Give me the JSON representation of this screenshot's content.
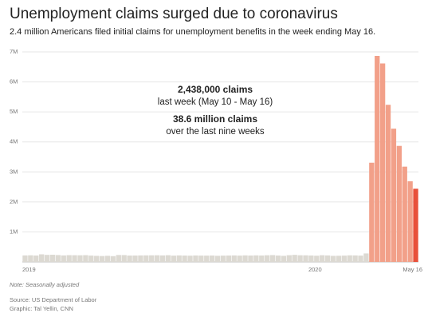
{
  "chart_data": {
    "type": "bar",
    "title": "Unemployment claims surged due to coronavirus",
    "subtitle": "2.4 million Americans filed initial claims for unemployment benefits in the week ending May 16.",
    "annotations": [
      "2,438,000 claims",
      "last week (May 10 - May 16)",
      "38.6 million claims",
      "over the last nine weeks"
    ],
    "note": "Note: Seasonally adjusted",
    "source": "Source: US Department of Labor",
    "credit": "Graphic: Tal Yellin, CNN",
    "categories": [
      "2019",
      null,
      null,
      null,
      null,
      null,
      null,
      null,
      null,
      null,
      null,
      null,
      null,
      null,
      null,
      null,
      null,
      null,
      null,
      null,
      null,
      null,
      null,
      null,
      null,
      null,
      null,
      null,
      null,
      null,
      null,
      null,
      null,
      null,
      null,
      null,
      null,
      null,
      null,
      null,
      null,
      null,
      null,
      null,
      null,
      null,
      null,
      null,
      null,
      null,
      null,
      null,
      "2020",
      null,
      null,
      null,
      null,
      null,
      null,
      null,
      null,
      null,
      null,
      null,
      null,
      null,
      null,
      null,
      null,
      null,
      null,
      "May 16"
    ],
    "values": [
      216000,
      221000,
      213000,
      253000,
      234000,
      239000,
      229000,
      216000,
      225000,
      223000,
      221000,
      225000,
      211000,
      202000,
      196000,
      204000,
      193000,
      230000,
      228000,
      212000,
      213000,
      216000,
      218000,
      220000,
      222000,
      216000,
      224000,
      209000,
      217000,
      212000,
      208000,
      215000,
      211000,
      210000,
      213000,
      204000,
      209000,
      213000,
      216000,
      211000,
      218000,
      213000,
      218000,
      214000,
      222000,
      227000,
      213000,
      203000,
      224000,
      235000,
      222000,
      220000,
      214000,
      207000,
      223000,
      216000,
      202000,
      205000,
      210000,
      219000,
      217000,
      211000,
      282000,
      3307000,
      6867000,
      6615000,
      5237000,
      4442000,
      3867000,
      3176000,
      2687000,
      2438000
    ],
    "colors": [
      "#dcd9d2",
      "#dcd9d2",
      "#dcd9d2",
      "#dcd9d2",
      "#dcd9d2",
      "#dcd9d2",
      "#dcd9d2",
      "#dcd9d2",
      "#dcd9d2",
      "#dcd9d2",
      "#dcd9d2",
      "#dcd9d2",
      "#dcd9d2",
      "#dcd9d2",
      "#dcd9d2",
      "#dcd9d2",
      "#dcd9d2",
      "#dcd9d2",
      "#dcd9d2",
      "#dcd9d2",
      "#dcd9d2",
      "#dcd9d2",
      "#dcd9d2",
      "#dcd9d2",
      "#dcd9d2",
      "#dcd9d2",
      "#dcd9d2",
      "#dcd9d2",
      "#dcd9d2",
      "#dcd9d2",
      "#dcd9d2",
      "#dcd9d2",
      "#dcd9d2",
      "#dcd9d2",
      "#dcd9d2",
      "#dcd9d2",
      "#dcd9d2",
      "#dcd9d2",
      "#dcd9d2",
      "#dcd9d2",
      "#dcd9d2",
      "#dcd9d2",
      "#dcd9d2",
      "#dcd9d2",
      "#dcd9d2",
      "#dcd9d2",
      "#dcd9d2",
      "#dcd9d2",
      "#dcd9d2",
      "#dcd9d2",
      "#dcd9d2",
      "#dcd9d2",
      "#dcd9d2",
      "#dcd9d2",
      "#dcd9d2",
      "#dcd9d2",
      "#dcd9d2",
      "#dcd9d2",
      "#dcd9d2",
      "#dcd9d2",
      "#dcd9d2",
      "#dcd9d2",
      "#dcd9d2",
      "#f2a089",
      "#f2a089",
      "#f2a089",
      "#f2a089",
      "#f2a089",
      "#f2a089",
      "#f2a089",
      "#f2a089",
      "#e8503a"
    ],
    "ylim": [
      0,
      7000000
    ],
    "yticks": [
      {
        "value": 1000000,
        "label": "1M"
      },
      {
        "value": 2000000,
        "label": "2M"
      },
      {
        "value": 3000000,
        "label": "3M"
      },
      {
        "value": 4000000,
        "label": "4M"
      },
      {
        "value": 5000000,
        "label": "5M"
      },
      {
        "value": 6000000,
        "label": "6M"
      },
      {
        "value": 7000000,
        "label": "7M"
      }
    ],
    "grid": true
  }
}
